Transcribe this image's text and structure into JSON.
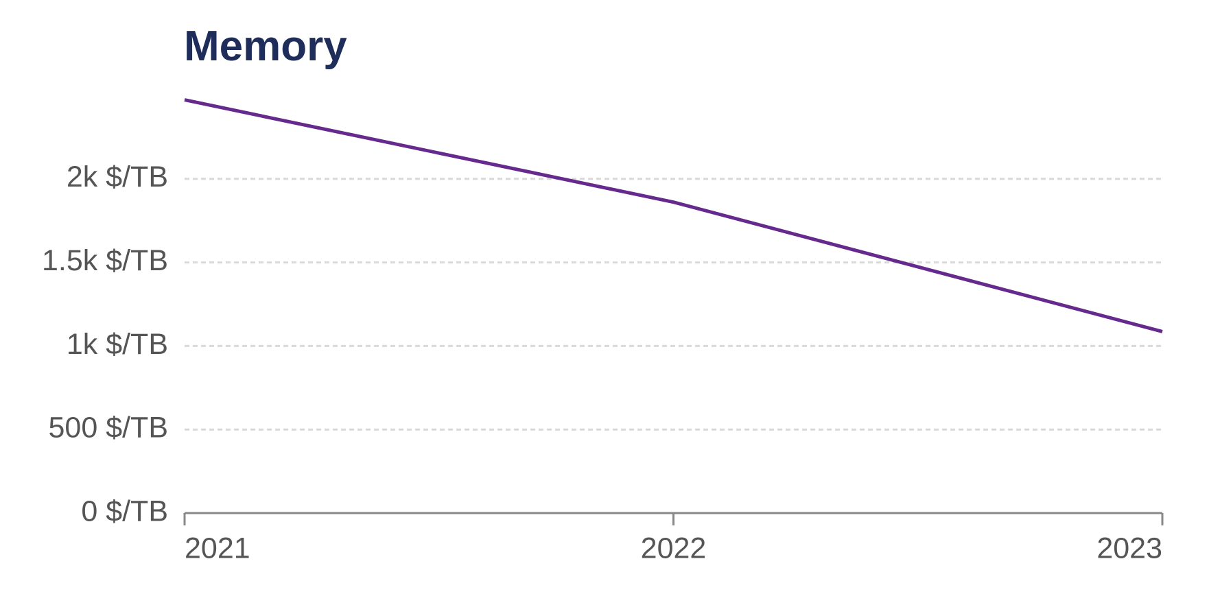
{
  "chart_data": {
    "type": "line",
    "title": "Memory",
    "x": [
      2021,
      2022,
      2023
    ],
    "values": [
      2473,
      1861,
      1086
    ],
    "color": "#662a8e",
    "xlim": [
      2021,
      2023
    ],
    "xticks": [
      2021,
      2022,
      2023
    ],
    "ylim": [
      0,
      2500
    ],
    "yticks": [
      {
        "value": 0,
        "label": "0 $/TB"
      },
      {
        "value": 500,
        "label": "500 $/TB"
      },
      {
        "value": 1000,
        "label": "1k $/TB"
      },
      {
        "value": 1500,
        "label": "1.5k $/TB"
      },
      {
        "value": 2000,
        "label": "2k $/TB"
      }
    ],
    "grid": true
  }
}
